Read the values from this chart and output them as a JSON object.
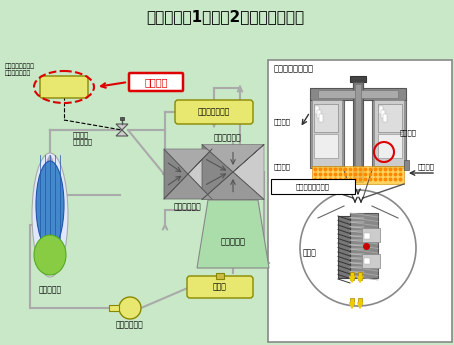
{
  "title": "伊方発電所1号機　2次系系統概略図",
  "bg_color": "#c8e8c8",
  "right_panel_title": "負荷制限器断面図",
  "labels": {
    "turbine_governor": "タービン調速装置\n（負荷制限器）",
    "current_location": "当該箇所",
    "valve_label": "タービン\n蒸気加減弁",
    "msep_label": "湿分分離加熱器",
    "hp_turbine": "高圧タービン",
    "lp_turbine": "低圧タービン",
    "condenser": "復　水　器",
    "deaerator": "脱気器",
    "feed_pump": "主給水ポンプ",
    "steam_gen": "蒸気発生器",
    "oil_out": "油の排出",
    "piston": "ピストン",
    "cup_valve": "カップ弁",
    "oil_system": "負荷制限器油系統",
    "oil_supply": "油の供給",
    "oil_gas": "油ガス"
  }
}
